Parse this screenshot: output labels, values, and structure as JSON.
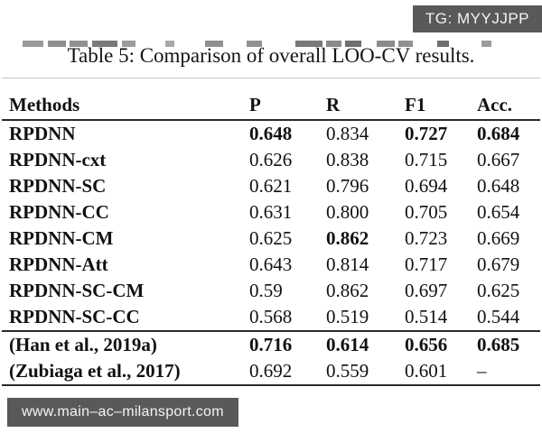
{
  "badge": {
    "label": "TG: MYYJJPP"
  },
  "caption": "Table 5: Comparison of overall LOO-CV results.",
  "url_bar": {
    "text": "www.main–ac–milansport.com"
  },
  "colors": {
    "overlay_gray": "#59595b",
    "overlay_text": "#f4f4f4",
    "rule_dark": "#2a2a2a",
    "rule_light": "#c4c4c4",
    "text": "#111111"
  },
  "chart_data": {
    "type": "table",
    "title": "Table 5: Comparison of overall LOO-CV results.",
    "headers": [
      "Methods",
      "P",
      "R",
      "F1",
      "Acc."
    ],
    "rows": [
      {
        "method": "RPDNN",
        "cells": [
          {
            "v": "0.648",
            "b": true
          },
          {
            "v": "0.834",
            "b": false
          },
          {
            "v": "0.727",
            "b": true
          },
          {
            "v": "0.684",
            "b": true
          }
        ]
      },
      {
        "method": "RPDNN-cxt",
        "cells": [
          {
            "v": "0.626",
            "b": false
          },
          {
            "v": "0.838",
            "b": false
          },
          {
            "v": "0.715",
            "b": false
          },
          {
            "v": "0.667",
            "b": false
          }
        ]
      },
      {
        "method": "RPDNN-SC",
        "cells": [
          {
            "v": "0.621",
            "b": false
          },
          {
            "v": "0.796",
            "b": false
          },
          {
            "v": "0.694",
            "b": false
          },
          {
            "v": "0.648",
            "b": false
          }
        ]
      },
      {
        "method": "RPDNN-CC",
        "cells": [
          {
            "v": "0.631",
            "b": false
          },
          {
            "v": "0.800",
            "b": false
          },
          {
            "v": "0.705",
            "b": false
          },
          {
            "v": "0.654",
            "b": false
          }
        ]
      },
      {
        "method": "RPDNN-CM",
        "cells": [
          {
            "v": "0.625",
            "b": false
          },
          {
            "v": "0.862",
            "b": true
          },
          {
            "v": "0.723",
            "b": false
          },
          {
            "v": "0.669",
            "b": false
          }
        ]
      },
      {
        "method": "RPDNN-Att",
        "cells": [
          {
            "v": "0.643",
            "b": false
          },
          {
            "v": "0.814",
            "b": false
          },
          {
            "v": "0.717",
            "b": false
          },
          {
            "v": "0.679",
            "b": false
          }
        ]
      },
      {
        "method": "RPDNN-SC-CM",
        "cells": [
          {
            "v": "0.59",
            "b": false
          },
          {
            "v": "0.862",
            "b": false
          },
          {
            "v": "0.697",
            "b": false
          },
          {
            "v": "0.625",
            "b": false
          }
        ]
      },
      {
        "method": "RPDNN-SC-CC",
        "cells": [
          {
            "v": "0.568",
            "b": false
          },
          {
            "v": "0.519",
            "b": false
          },
          {
            "v": "0.514",
            "b": false
          },
          {
            "v": "0.544",
            "b": false
          }
        ]
      },
      {
        "method": "(Han et al., 2019a)",
        "cells": [
          {
            "v": "0.716",
            "b": true
          },
          {
            "v": "0.614",
            "b": true
          },
          {
            "v": "0.656",
            "b": true
          },
          {
            "v": "0.685",
            "b": true
          }
        ]
      },
      {
        "method": "(Zubiaga et al., 2017)",
        "cells": [
          {
            "v": "0.692",
            "b": false
          },
          {
            "v": "0.559",
            "b": false
          },
          {
            "v": "0.601",
            "b": false
          },
          {
            "v": "–",
            "b": false
          }
        ]
      }
    ],
    "group_break_after": 8
  }
}
